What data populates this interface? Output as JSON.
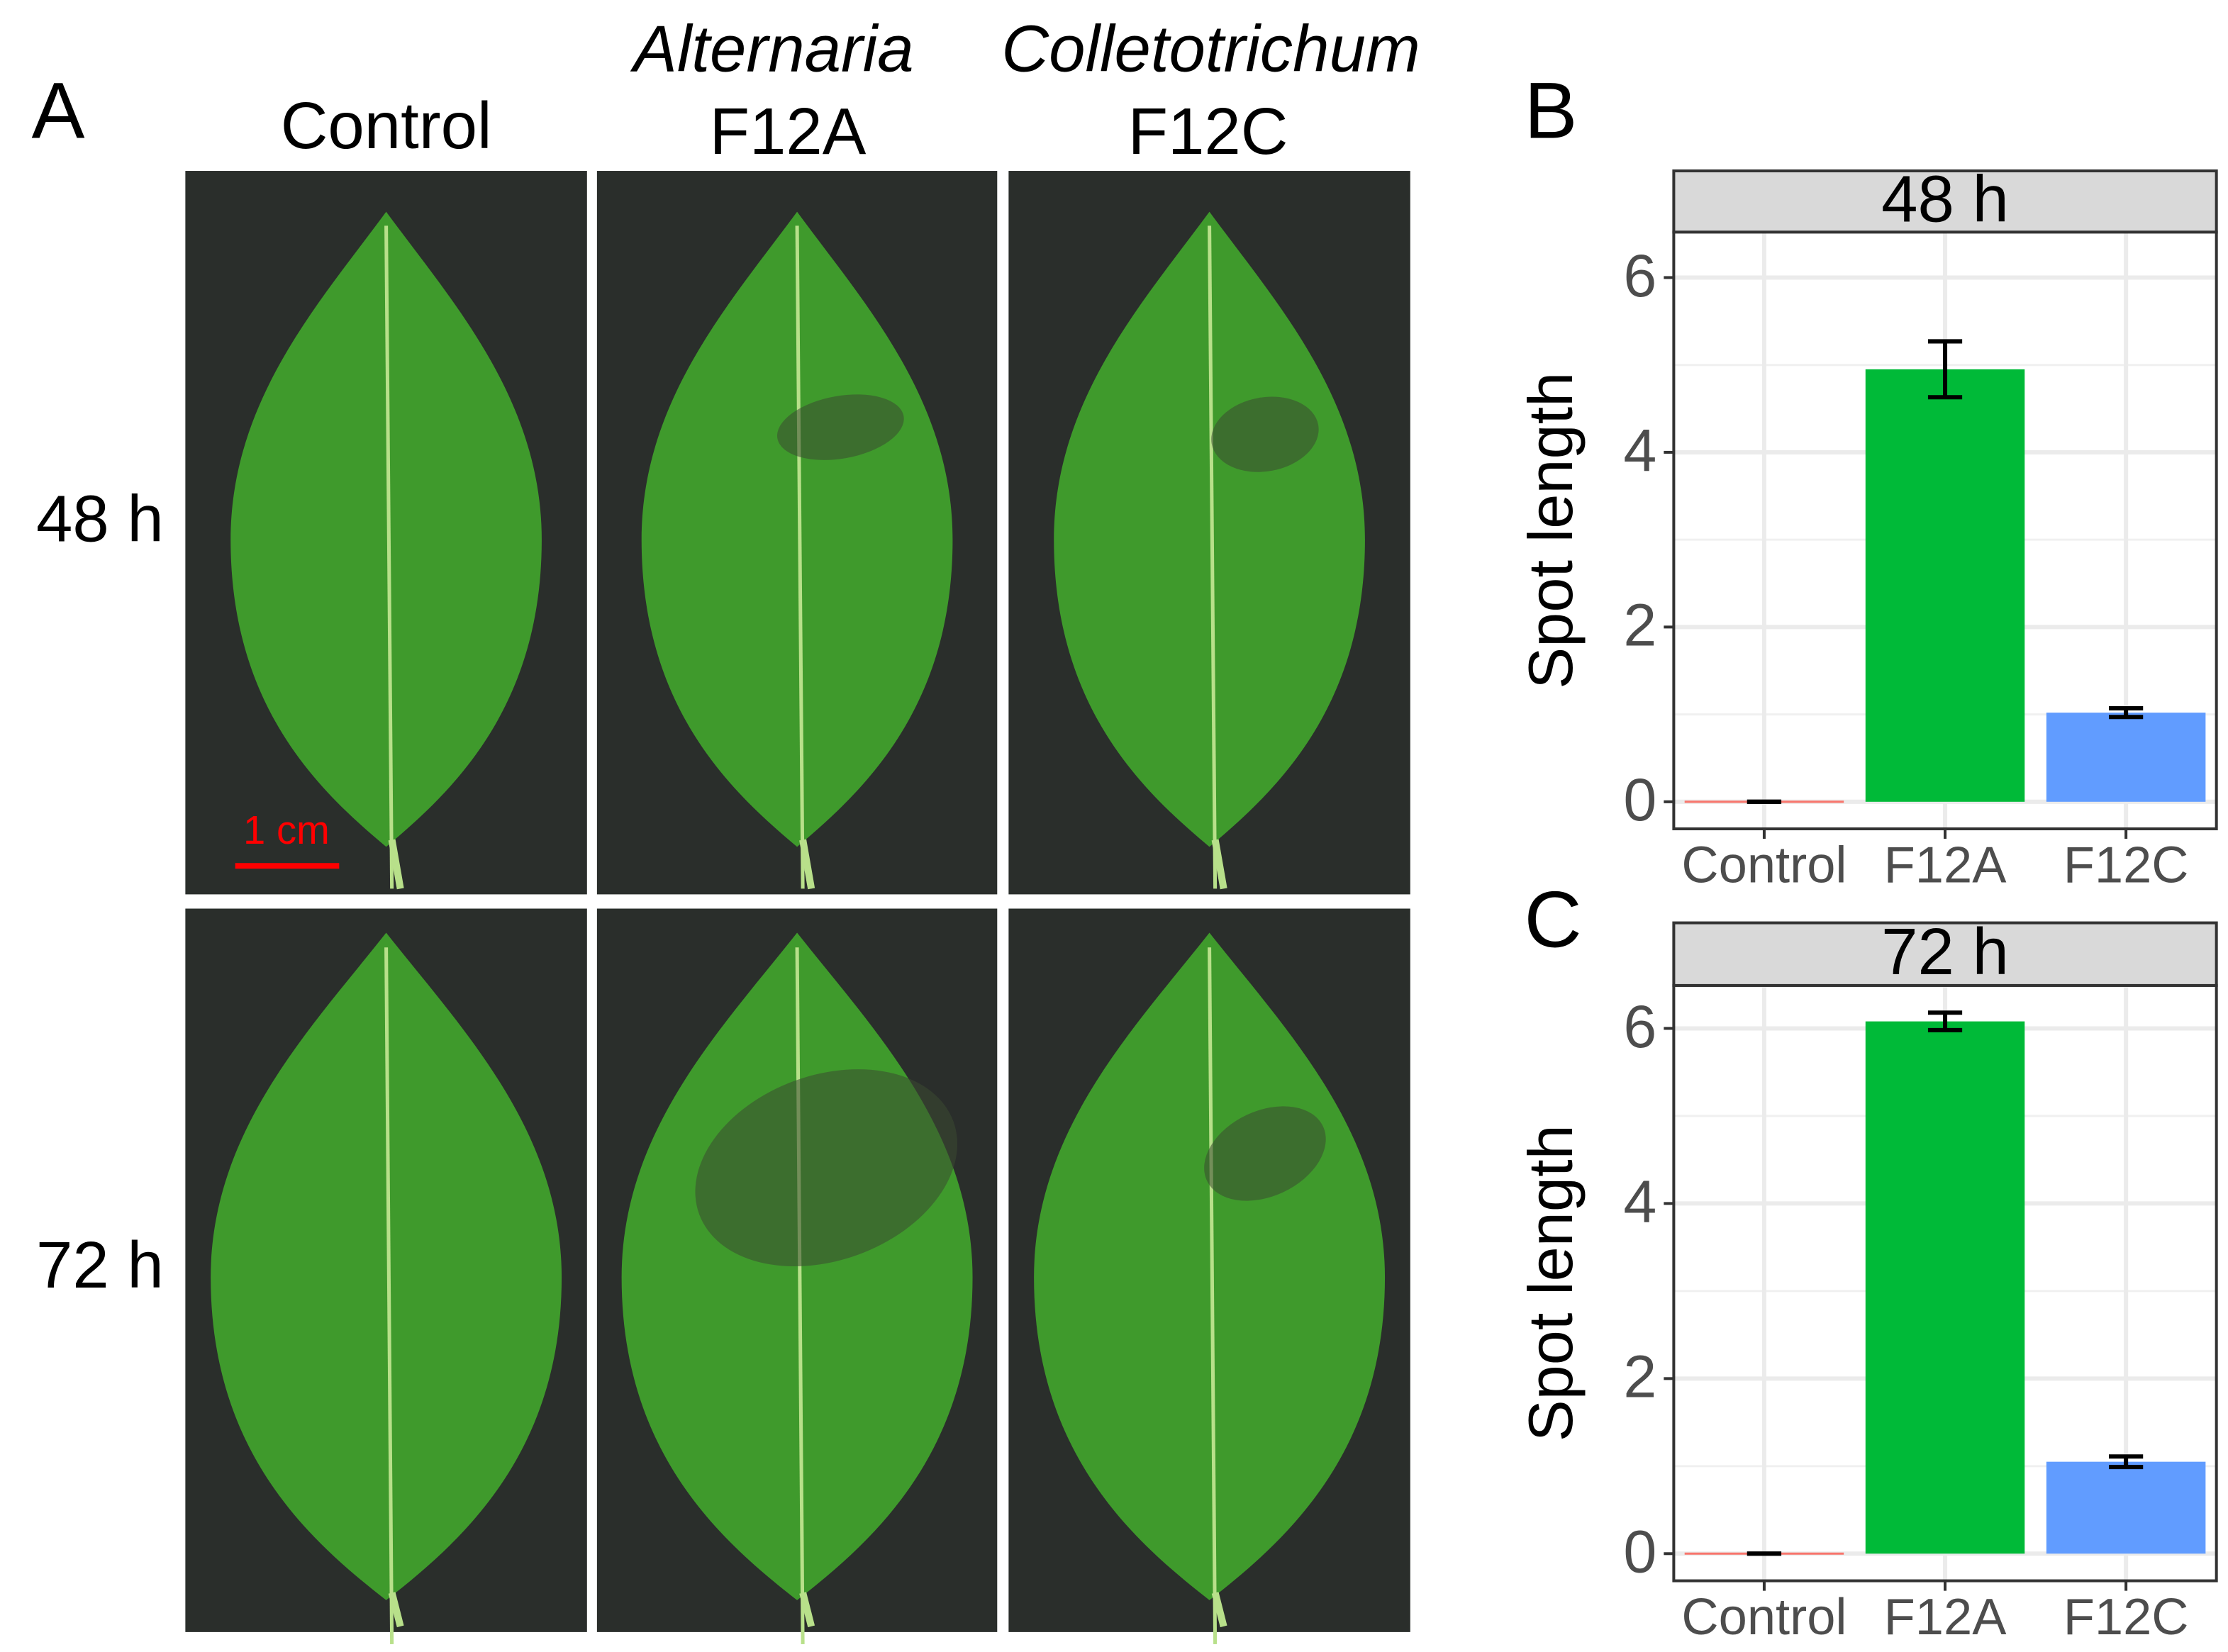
{
  "panel_a": {
    "label": "A",
    "columns": [
      {
        "lines": [
          "Control"
        ]
      },
      {
        "lines": [
          "Alternaria",
          "F12A"
        ]
      },
      {
        "lines": [
          "Colletotrichum",
          "F12C"
        ]
      }
    ],
    "rows": [
      "48 h",
      "72 h"
    ],
    "scale_bar": "1 cm"
  },
  "chart_data": [
    {
      "type": "bar",
      "label": "B",
      "title": "48 h",
      "y_label": "Spot length",
      "categories": [
        "Control",
        "F12A",
        "F12C"
      ],
      "values": [
        0,
        4.95,
        1.02
      ],
      "errors": [
        0,
        0.32,
        0.05
      ],
      "colors": [
        "#f8766d",
        "#00ba38",
        "#619cff"
      ],
      "ylim": [
        -0.31,
        6.52
      ],
      "yticks": [
        0,
        2,
        4,
        6
      ],
      "grid": true
    },
    {
      "type": "bar",
      "label": "C",
      "title": "72 h",
      "y_label": "Spot length",
      "categories": [
        "Control",
        "F12A",
        "F12C"
      ],
      "values": [
        0,
        6.08,
        1.05
      ],
      "errors": [
        0,
        0.1,
        0.06
      ],
      "colors": [
        "#f8766d",
        "#00ba38",
        "#619cff"
      ],
      "ylim": [
        -0.31,
        6.49
      ],
      "yticks": [
        0,
        2,
        4,
        6
      ],
      "grid": true
    }
  ]
}
